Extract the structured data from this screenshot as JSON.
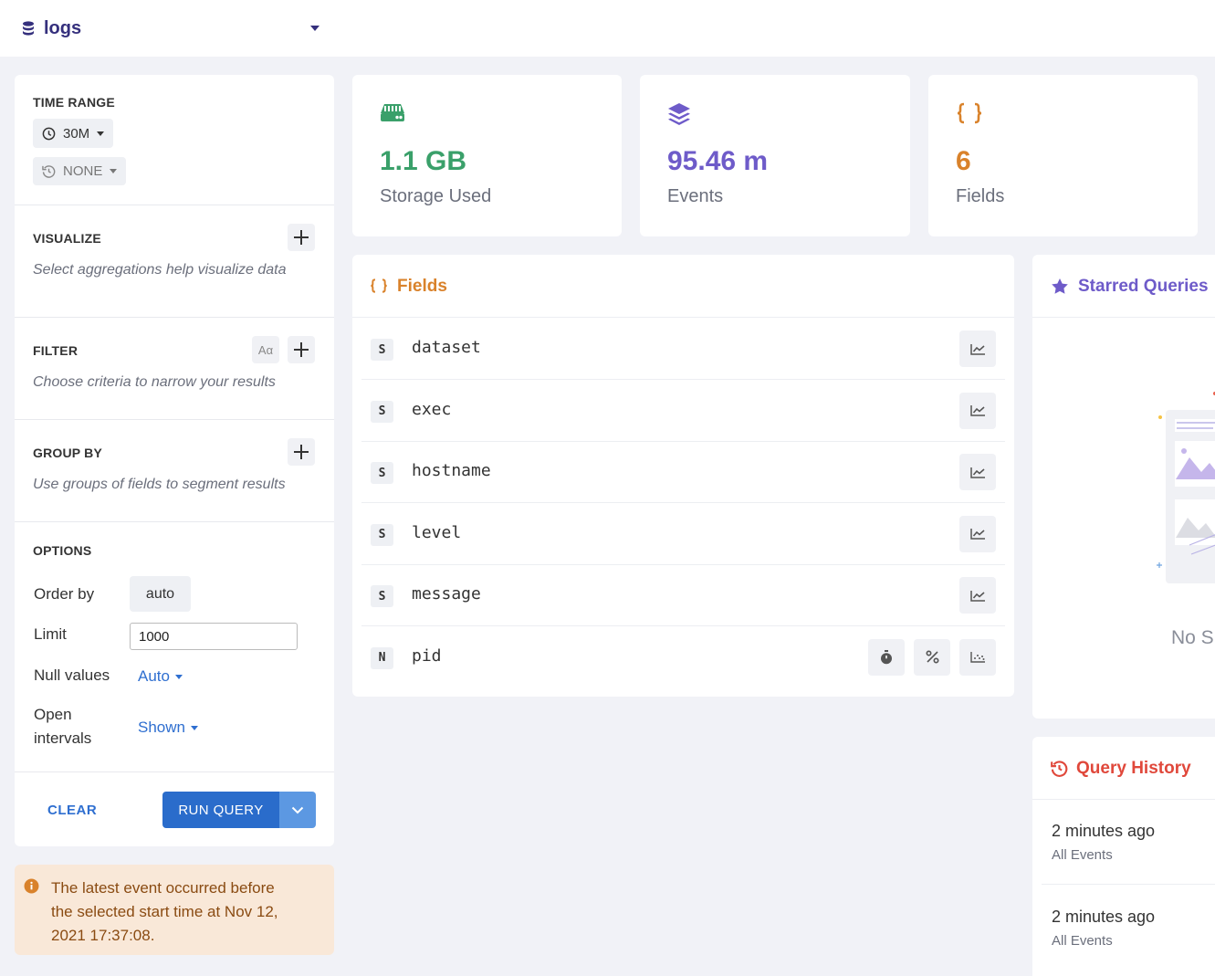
{
  "dataset": {
    "name": "logs"
  },
  "sidebar": {
    "time_range": {
      "title": "TIME RANGE",
      "range": "30M",
      "compare": "NONE"
    },
    "visualize": {
      "title": "VISUALIZE",
      "hint": "Select aggregations help visualize data"
    },
    "filter": {
      "title": "FILTER",
      "case_label": "Aα",
      "hint": "Choose criteria to narrow your results"
    },
    "group_by": {
      "title": "GROUP BY",
      "hint": "Use groups of fields to segment results"
    },
    "options": {
      "title": "OPTIONS",
      "order_by_label": "Order by",
      "order_by_value": "auto",
      "limit_label": "Limit",
      "limit_value": "1000",
      "null_values_label": "Null values",
      "null_values_value": "Auto",
      "open_intervals_label_1": "Open",
      "open_intervals_label_2": "intervals",
      "open_intervals_value": "Shown"
    },
    "clear_label": "CLEAR",
    "run_query_label": "RUN QUERY"
  },
  "notice": {
    "line1": "The latest event occurred before",
    "line2": "the selected start time at Nov 12,",
    "line3": "2021 17:37:08."
  },
  "stats": [
    {
      "value": "1.1 GB",
      "label": "Storage Used",
      "color": "#3aa06a",
      "icon": "storage-icon"
    },
    {
      "value": "95.46 m",
      "label": "Events",
      "color": "#6e5bc9",
      "icon": "layers-icon"
    },
    {
      "value": "6",
      "label": "Fields",
      "color": "#d9822b",
      "icon": "braces-icon"
    }
  ],
  "fields_panel": {
    "title": "Fields",
    "rows": [
      {
        "type": "S",
        "name": "dataset"
      },
      {
        "type": "S",
        "name": "exec"
      },
      {
        "type": "S",
        "name": "hostname"
      },
      {
        "type": "S",
        "name": "level"
      },
      {
        "type": "S",
        "name": "message"
      },
      {
        "type": "N",
        "name": "pid"
      }
    ]
  },
  "starred": {
    "title": "Starred Queries",
    "empty": "No S"
  },
  "history": {
    "title": "Query History",
    "items": [
      {
        "time": "2 minutes ago",
        "desc": "All Events"
      },
      {
        "time": "2 minutes ago",
        "desc": "All Events"
      }
    ]
  }
}
